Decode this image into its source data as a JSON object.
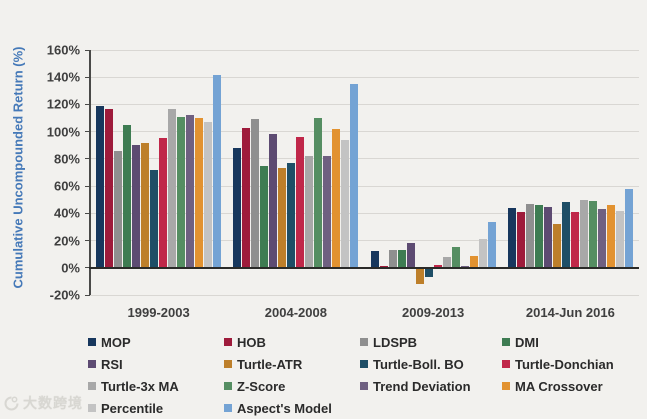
{
  "chart_data": {
    "type": "bar",
    "title": "",
    "ylabel": "Cumulative Uncompounded Return (%)",
    "xlabel": "",
    "categories": [
      "1999-2003",
      "2004-2008",
      "2009-2013",
      "2014-Jun 2016"
    ],
    "ylim": [
      -20,
      160
    ],
    "ytick_step": 20,
    "ytick_labels": [
      "160%",
      "140%",
      "120%",
      "100%",
      "80%",
      "60%",
      "40%",
      "20%",
      "0%",
      "-20%"
    ],
    "grid": true,
    "legend_position": "bottom",
    "series": [
      {
        "name": "MOP",
        "color": "#17375d",
        "values": [
          119,
          88,
          12,
          44
        ]
      },
      {
        "name": "HOB",
        "color": "#9e1b3b",
        "values": [
          117,
          103,
          1,
          41
        ]
      },
      {
        "name": "LDSPB",
        "color": "#8f8f8f",
        "values": [
          86,
          109,
          13,
          47
        ]
      },
      {
        "name": "DMI",
        "color": "#3e7c52",
        "values": [
          105,
          75,
          13,
          46
        ]
      },
      {
        "name": "RSI",
        "color": "#5d4b72",
        "values": [
          90,
          98,
          18,
          45
        ]
      },
      {
        "name": "Turtle-ATR",
        "color": "#bd7f2a",
        "values": [
          92,
          73,
          -12,
          32
        ]
      },
      {
        "name": "Turtle-Boll. BO",
        "color": "#1e4e66",
        "values": [
          72,
          77,
          -7,
          48
        ]
      },
      {
        "name": "Turtle-Donchian",
        "color": "#c02749",
        "values": [
          95,
          96,
          2,
          41
        ]
      },
      {
        "name": "Turtle-3x MA",
        "color": "#a8a8a8",
        "values": [
          117,
          82,
          8,
          50
        ]
      },
      {
        "name": "Z-Score",
        "color": "#558e62",
        "values": [
          111,
          110,
          15,
          49
        ]
      },
      {
        "name": "Trend Deviation",
        "color": "#6f6081",
        "values": [
          112,
          82,
          1,
          43
        ]
      },
      {
        "name": "MA Crossover",
        "color": "#e29230",
        "values": [
          110,
          102,
          9,
          46
        ]
      },
      {
        "name": "Percentile",
        "color": "#c3c3c3",
        "values": [
          107,
          94,
          21,
          42
        ]
      },
      {
        "name": "Aspect's Model",
        "color": "#74a3d4",
        "values": [
          142,
          135,
          34,
          58
        ]
      }
    ]
  },
  "watermark": {
    "icon": "swirl-logo-icon",
    "text": "大数跨境"
  }
}
